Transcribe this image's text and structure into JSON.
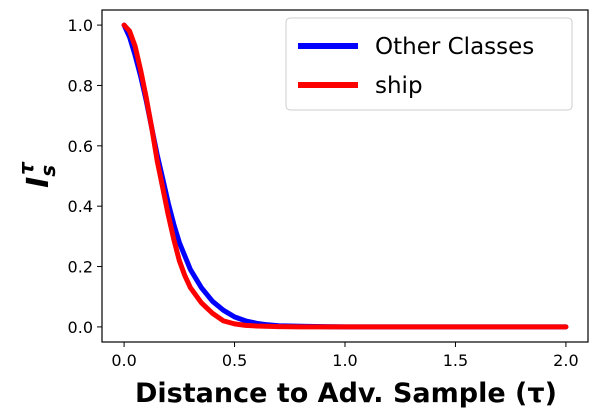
{
  "chart_data": {
    "type": "line",
    "xlabel": "Distance to Adv. Sample (τ)",
    "ylabel_base": "I",
    "ylabel_sub": "s",
    "ylabel_sup": "τ",
    "xlim": [
      -0.1,
      2.1
    ],
    "ylim": [
      -0.05,
      1.05
    ],
    "xticks": [
      0.0,
      0.5,
      1.0,
      1.5,
      2.0
    ],
    "xtick_labels": [
      "0.0",
      "0.5",
      "1.0",
      "1.5",
      "2.0"
    ],
    "yticks": [
      0.0,
      0.2,
      0.4,
      0.6,
      0.8,
      1.0
    ],
    "ytick_labels": [
      "0.0",
      "0.2",
      "0.4",
      "0.6",
      "0.8",
      "1.0"
    ],
    "grid": false,
    "legend_position": "top-right",
    "series": [
      {
        "name": "Other Classes",
        "color": "#0000ff",
        "x": [
          0.0,
          0.025,
          0.05,
          0.075,
          0.1,
          0.125,
          0.15,
          0.175,
          0.2,
          0.225,
          0.25,
          0.3,
          0.35,
          0.4,
          0.45,
          0.5,
          0.55,
          0.6,
          0.65,
          0.7,
          0.8,
          0.9,
          1.0,
          1.2,
          1.5,
          2.0
        ],
        "y": [
          1.0,
          0.96,
          0.9,
          0.83,
          0.75,
          0.66,
          0.57,
          0.49,
          0.41,
          0.34,
          0.28,
          0.19,
          0.13,
          0.085,
          0.055,
          0.033,
          0.02,
          0.012,
          0.007,
          0.004,
          0.002,
          0.001,
          0.0,
          0.0,
          0.0,
          0.0
        ]
      },
      {
        "name": "ship",
        "color": "#ff0000",
        "x": [
          0.0,
          0.025,
          0.05,
          0.075,
          0.1,
          0.125,
          0.15,
          0.175,
          0.2,
          0.225,
          0.25,
          0.275,
          0.3,
          0.35,
          0.4,
          0.45,
          0.5,
          0.55,
          0.6,
          0.7,
          0.8,
          1.0,
          1.5,
          2.0
        ],
        "y": [
          1.0,
          0.98,
          0.93,
          0.85,
          0.76,
          0.66,
          0.55,
          0.46,
          0.37,
          0.29,
          0.22,
          0.17,
          0.13,
          0.08,
          0.045,
          0.02,
          0.01,
          0.005,
          0.003,
          0.001,
          0.0,
          0.0,
          0.0,
          0.0
        ]
      }
    ]
  }
}
